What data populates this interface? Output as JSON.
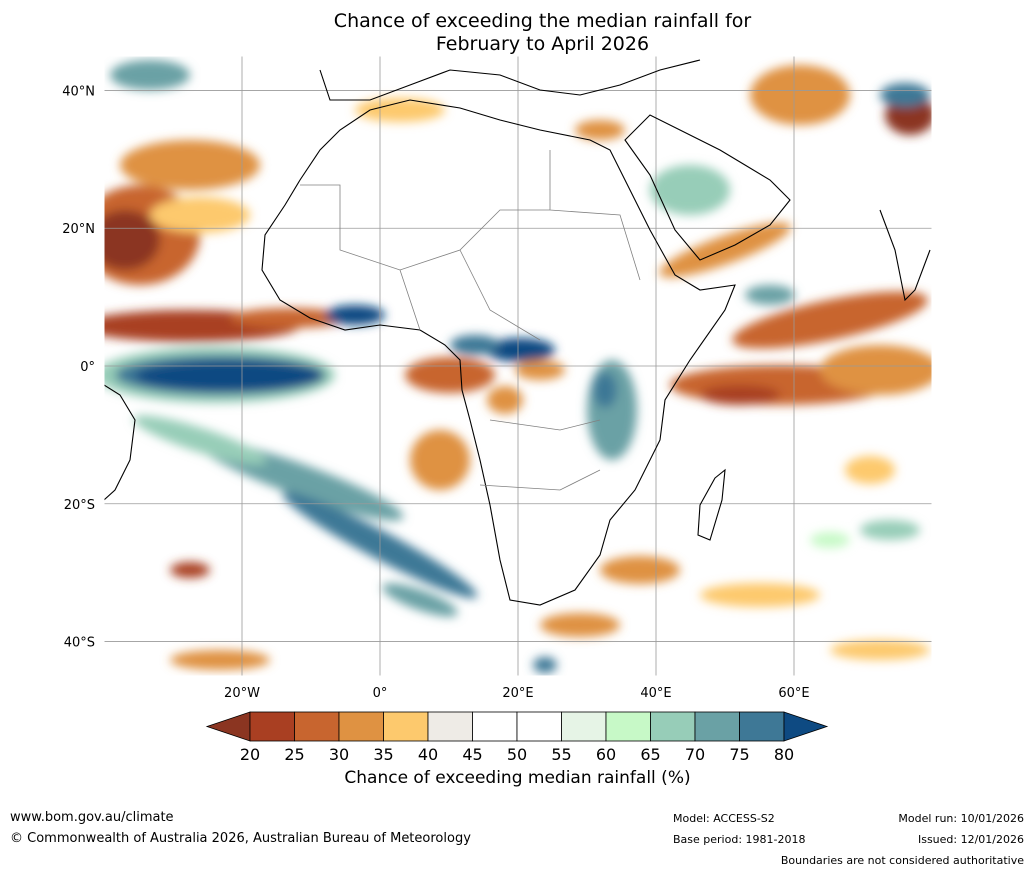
{
  "title": {
    "line1": "Chance of exceeding the median rainfall for",
    "line2": "February to April 2026"
  },
  "axes": {
    "lat_labels": [
      "40°N",
      "20°N",
      "0°",
      "20°S",
      "40°S"
    ],
    "lat_values": [
      40,
      20,
      0,
      -20,
      -40
    ],
    "lon_labels": [
      "20°W",
      "0°",
      "20°E",
      "40°E",
      "60°E"
    ],
    "lon_values": [
      -20,
      0,
      20,
      40,
      60
    ],
    "lon_range": [
      -40,
      80
    ],
    "lat_range": [
      -45,
      45
    ]
  },
  "colorbar": {
    "ticks": [
      "20",
      "25",
      "30",
      "35",
      "40",
      "45",
      "50",
      "55",
      "60",
      "65",
      "70",
      "75",
      "80"
    ],
    "colors": [
      "#a93f22",
      "#c8652f",
      "#df9242",
      "#fdc96d",
      "#eeebe6",
      "#ffffff",
      "#ffffff",
      "#e6f4e6",
      "#c7f9c7",
      "#97cdb8",
      "#6aa1a5",
      "#3e7896"
    ],
    "under_color": "#8b3521",
    "over_color": "#0e4a82",
    "label": "Chance of exceeding median rainfall (%)"
  },
  "footer": {
    "website": "www.bom.gov.au/climate",
    "copyright": "© Commonwealth of Australia 2026, Australian Bureau of Meteorology",
    "model": "Model: ACCESS-S2",
    "base_period": "Base period: 1981-2018",
    "model_run": "Model run: 10/01/2026",
    "issued": "Issued: 12/01/2026",
    "disclaimer": "Boundaries are not considered authoritative"
  }
}
